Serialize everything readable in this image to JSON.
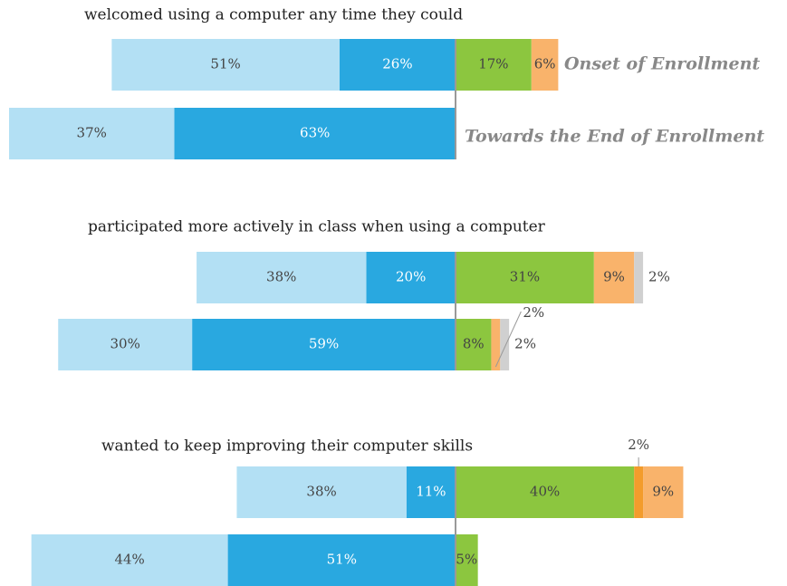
{
  "chart_data": {
    "type": "diverging_bar",
    "groups": [
      "welcomed using a computer any time they could",
      "participated more actively in class when using a computer",
      "wanted to keep improving their computer skills"
    ],
    "bar_labels": [
      "Onset of Enrollment",
      "Towards the End of Enrollment"
    ],
    "series": [
      {
        "color": "#29a8e0",
        "side": "left",
        "values": [
          26,
          63,
          20,
          59,
          11,
          51
        ],
        "value_labels": [
          "26%",
          "63%",
          "20%",
          "59%",
          "11%",
          "51%"
        ]
      },
      {
        "color": "#b3e0f4",
        "side": "left",
        "values": [
          51,
          37,
          38,
          30,
          38,
          44
        ],
        "value_labels": [
          "51%",
          "37%",
          "38%",
          "30%",
          "38%",
          "44%"
        ]
      },
      {
        "color": "#8cc63f",
        "side": "right",
        "values": [
          17,
          null,
          31,
          8,
          40,
          5
        ],
        "value_labels": [
          "17%",
          null,
          "31%",
          "8%",
          "40%",
          "5%"
        ]
      },
      {
        "color": "#f39c2c",
        "side": "right",
        "values": [
          null,
          null,
          null,
          null,
          2,
          null
        ],
        "value_labels": [
          null,
          null,
          null,
          null,
          "2%",
          null
        ]
      },
      {
        "color": "#f9b36b",
        "side": "right",
        "values": [
          6,
          null,
          9,
          2,
          9,
          null
        ],
        "value_labels": [
          "6%",
          null,
          "9%",
          "2%",
          "9%",
          null
        ]
      },
      {
        "color": "#d0d0d0",
        "side": "right",
        "values": [
          null,
          null,
          2,
          2,
          null,
          null
        ],
        "value_labels": [
          null,
          null,
          "2%",
          "2%",
          null,
          null
        ]
      }
    ]
  }
}
